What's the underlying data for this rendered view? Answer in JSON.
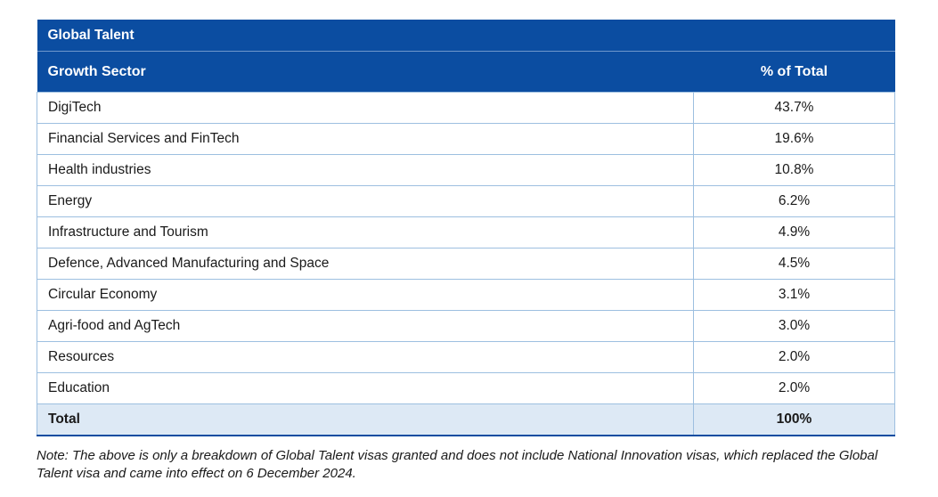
{
  "table": {
    "title": "Global Talent",
    "header": [
      "Growth Sector",
      "% of Total"
    ],
    "rows": [
      [
        "DigiTech",
        "43.7%"
      ],
      [
        "Financial Services and FinTech",
        "19.6%"
      ],
      [
        "Health industries",
        "10.8%"
      ],
      [
        "Energy",
        "6.2%"
      ],
      [
        "Infrastructure and Tourism",
        "4.9%"
      ],
      [
        "Defence, Advanced Manufacturing and Space",
        "4.5%"
      ],
      [
        "Circular Economy",
        "3.1%"
      ],
      [
        "Agri-food and AgTech",
        "3.0%"
      ],
      [
        "Resources",
        "2.0%"
      ],
      [
        "Education",
        "2.0%"
      ]
    ],
    "total": [
      "Total",
      "100%"
    ]
  },
  "note": "Note: The above is only a breakdown of Global Talent visas granted and does not include National Innovation visas, which replaced the Global Talent visa and came into effect on 6 December 2024."
}
